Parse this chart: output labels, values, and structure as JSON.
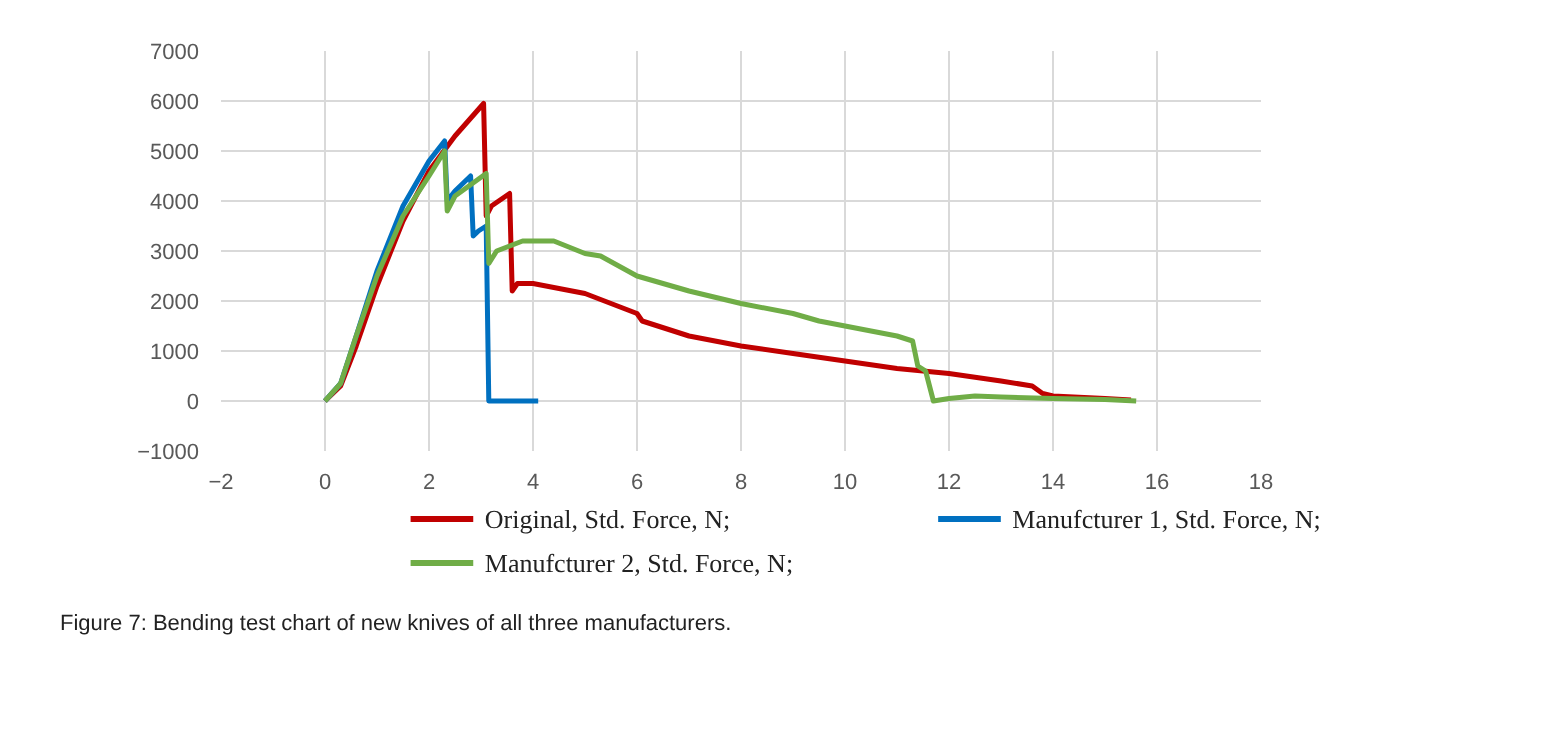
{
  "chart_data": {
    "type": "line",
    "annotations": [
      "Figure 7: Bending test chart of new knives of all three manufacturers."
    ],
    "xlim": [
      -2,
      18
    ],
    "xticks": [
      -2,
      0,
      2,
      4,
      6,
      8,
      10,
      12,
      14,
      16,
      18
    ],
    "ylim": [
      -1000,
      7000
    ],
    "yticks": [
      -1000,
      0,
      1000,
      2000,
      3000,
      4000,
      5000,
      6000,
      7000
    ],
    "grid": true,
    "legend": "bottom",
    "line_style": "solid",
    "marker": "none",
    "series": [
      {
        "name": "Original, Std. Force, N;",
        "color": "#c00000",
        "x": [
          0,
          0.3,
          0.6,
          1,
          1.5,
          2,
          2.5,
          3.05,
          3.1,
          3.2,
          3.55,
          3.6,
          3.7,
          4,
          5,
          5.5,
          6,
          6.1,
          7,
          8,
          9,
          10,
          11,
          12,
          13,
          13.6,
          13.8,
          14,
          15,
          15.5
        ],
        "values": [
          0,
          300,
          1100,
          2300,
          3600,
          4600,
          5300,
          5950,
          3700,
          3900,
          4150,
          2200,
          2350,
          2350,
          2150,
          1950,
          1750,
          1600,
          1300,
          1100,
          950,
          800,
          650,
          550,
          400,
          300,
          150,
          100,
          50,
          20
        ]
      },
      {
        "name": "Manufcturer 1, Std. Force, N;",
        "color": "#0070c0",
        "x": [
          0,
          0.3,
          0.6,
          1,
          1.5,
          2,
          2.3,
          2.35,
          2.5,
          2.8,
          2.85,
          2.95,
          3.1,
          3.15,
          4.1
        ],
        "values": [
          0,
          350,
          1300,
          2600,
          3900,
          4800,
          5200,
          4000,
          4200,
          4500,
          3300,
          3400,
          3500,
          0,
          0
        ]
      },
      {
        "name": "Manufcturer 2, Std. Force, N;",
        "color": "#70ad47",
        "x": [
          0,
          0.3,
          0.6,
          1,
          1.5,
          2,
          2.3,
          2.35,
          2.5,
          3.1,
          3.15,
          3.3,
          3.8,
          4.4,
          5,
          5.3,
          6,
          7,
          8,
          9,
          9.5,
          10,
          11,
          11.3,
          11.4,
          11.55,
          11.7,
          12,
          12.5,
          13,
          14,
          15,
          15.6
        ],
        "values": [
          0,
          350,
          1300,
          2500,
          3700,
          4500,
          5000,
          3800,
          4100,
          4550,
          2750,
          3000,
          3200,
          3200,
          2950,
          2900,
          2500,
          2200,
          1950,
          1750,
          1600,
          1500,
          1300,
          1200,
          700,
          600,
          0,
          50,
          100,
          80,
          50,
          30,
          0
        ]
      }
    ]
  }
}
